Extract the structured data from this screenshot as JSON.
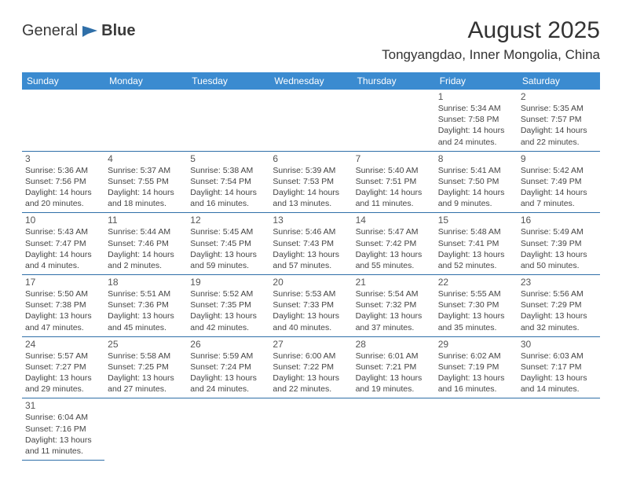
{
  "logo": {
    "text1": "General",
    "text2": "Blue"
  },
  "title": "August 2025",
  "location": "Tongyangdao, Inner Mongolia, China",
  "colors": {
    "header_bg": "#3b8bd0",
    "header_text": "#ffffff",
    "border": "#2f6fa8",
    "logo_blue": "#2f6fa8",
    "text": "#3a3a3a"
  },
  "weekdays": [
    "Sunday",
    "Monday",
    "Tuesday",
    "Wednesday",
    "Thursday",
    "Friday",
    "Saturday"
  ],
  "weeks": [
    [
      null,
      null,
      null,
      null,
      null,
      {
        "n": "1",
        "sr": "Sunrise: 5:34 AM",
        "ss": "Sunset: 7:58 PM",
        "d1": "Daylight: 14 hours",
        "d2": "and 24 minutes."
      },
      {
        "n": "2",
        "sr": "Sunrise: 5:35 AM",
        "ss": "Sunset: 7:57 PM",
        "d1": "Daylight: 14 hours",
        "d2": "and 22 minutes."
      }
    ],
    [
      {
        "n": "3",
        "sr": "Sunrise: 5:36 AM",
        "ss": "Sunset: 7:56 PM",
        "d1": "Daylight: 14 hours",
        "d2": "and 20 minutes."
      },
      {
        "n": "4",
        "sr": "Sunrise: 5:37 AM",
        "ss": "Sunset: 7:55 PM",
        "d1": "Daylight: 14 hours",
        "d2": "and 18 minutes."
      },
      {
        "n": "5",
        "sr": "Sunrise: 5:38 AM",
        "ss": "Sunset: 7:54 PM",
        "d1": "Daylight: 14 hours",
        "d2": "and 16 minutes."
      },
      {
        "n": "6",
        "sr": "Sunrise: 5:39 AM",
        "ss": "Sunset: 7:53 PM",
        "d1": "Daylight: 14 hours",
        "d2": "and 13 minutes."
      },
      {
        "n": "7",
        "sr": "Sunrise: 5:40 AM",
        "ss": "Sunset: 7:51 PM",
        "d1": "Daylight: 14 hours",
        "d2": "and 11 minutes."
      },
      {
        "n": "8",
        "sr": "Sunrise: 5:41 AM",
        "ss": "Sunset: 7:50 PM",
        "d1": "Daylight: 14 hours",
        "d2": "and 9 minutes."
      },
      {
        "n": "9",
        "sr": "Sunrise: 5:42 AM",
        "ss": "Sunset: 7:49 PM",
        "d1": "Daylight: 14 hours",
        "d2": "and 7 minutes."
      }
    ],
    [
      {
        "n": "10",
        "sr": "Sunrise: 5:43 AM",
        "ss": "Sunset: 7:47 PM",
        "d1": "Daylight: 14 hours",
        "d2": "and 4 minutes."
      },
      {
        "n": "11",
        "sr": "Sunrise: 5:44 AM",
        "ss": "Sunset: 7:46 PM",
        "d1": "Daylight: 14 hours",
        "d2": "and 2 minutes."
      },
      {
        "n": "12",
        "sr": "Sunrise: 5:45 AM",
        "ss": "Sunset: 7:45 PM",
        "d1": "Daylight: 13 hours",
        "d2": "and 59 minutes."
      },
      {
        "n": "13",
        "sr": "Sunrise: 5:46 AM",
        "ss": "Sunset: 7:43 PM",
        "d1": "Daylight: 13 hours",
        "d2": "and 57 minutes."
      },
      {
        "n": "14",
        "sr": "Sunrise: 5:47 AM",
        "ss": "Sunset: 7:42 PM",
        "d1": "Daylight: 13 hours",
        "d2": "and 55 minutes."
      },
      {
        "n": "15",
        "sr": "Sunrise: 5:48 AM",
        "ss": "Sunset: 7:41 PM",
        "d1": "Daylight: 13 hours",
        "d2": "and 52 minutes."
      },
      {
        "n": "16",
        "sr": "Sunrise: 5:49 AM",
        "ss": "Sunset: 7:39 PM",
        "d1": "Daylight: 13 hours",
        "d2": "and 50 minutes."
      }
    ],
    [
      {
        "n": "17",
        "sr": "Sunrise: 5:50 AM",
        "ss": "Sunset: 7:38 PM",
        "d1": "Daylight: 13 hours",
        "d2": "and 47 minutes."
      },
      {
        "n": "18",
        "sr": "Sunrise: 5:51 AM",
        "ss": "Sunset: 7:36 PM",
        "d1": "Daylight: 13 hours",
        "d2": "and 45 minutes."
      },
      {
        "n": "19",
        "sr": "Sunrise: 5:52 AM",
        "ss": "Sunset: 7:35 PM",
        "d1": "Daylight: 13 hours",
        "d2": "and 42 minutes."
      },
      {
        "n": "20",
        "sr": "Sunrise: 5:53 AM",
        "ss": "Sunset: 7:33 PM",
        "d1": "Daylight: 13 hours",
        "d2": "and 40 minutes."
      },
      {
        "n": "21",
        "sr": "Sunrise: 5:54 AM",
        "ss": "Sunset: 7:32 PM",
        "d1": "Daylight: 13 hours",
        "d2": "and 37 minutes."
      },
      {
        "n": "22",
        "sr": "Sunrise: 5:55 AM",
        "ss": "Sunset: 7:30 PM",
        "d1": "Daylight: 13 hours",
        "d2": "and 35 minutes."
      },
      {
        "n": "23",
        "sr": "Sunrise: 5:56 AM",
        "ss": "Sunset: 7:29 PM",
        "d1": "Daylight: 13 hours",
        "d2": "and 32 minutes."
      }
    ],
    [
      {
        "n": "24",
        "sr": "Sunrise: 5:57 AM",
        "ss": "Sunset: 7:27 PM",
        "d1": "Daylight: 13 hours",
        "d2": "and 29 minutes."
      },
      {
        "n": "25",
        "sr": "Sunrise: 5:58 AM",
        "ss": "Sunset: 7:25 PM",
        "d1": "Daylight: 13 hours",
        "d2": "and 27 minutes."
      },
      {
        "n": "26",
        "sr": "Sunrise: 5:59 AM",
        "ss": "Sunset: 7:24 PM",
        "d1": "Daylight: 13 hours",
        "d2": "and 24 minutes."
      },
      {
        "n": "27",
        "sr": "Sunrise: 6:00 AM",
        "ss": "Sunset: 7:22 PM",
        "d1": "Daylight: 13 hours",
        "d2": "and 22 minutes."
      },
      {
        "n": "28",
        "sr": "Sunrise: 6:01 AM",
        "ss": "Sunset: 7:21 PM",
        "d1": "Daylight: 13 hours",
        "d2": "and 19 minutes."
      },
      {
        "n": "29",
        "sr": "Sunrise: 6:02 AM",
        "ss": "Sunset: 7:19 PM",
        "d1": "Daylight: 13 hours",
        "d2": "and 16 minutes."
      },
      {
        "n": "30",
        "sr": "Sunrise: 6:03 AM",
        "ss": "Sunset: 7:17 PM",
        "d1": "Daylight: 13 hours",
        "d2": "and 14 minutes."
      }
    ],
    [
      {
        "n": "31",
        "sr": "Sunrise: 6:04 AM",
        "ss": "Sunset: 7:16 PM",
        "d1": "Daylight: 13 hours",
        "d2": "and 11 minutes."
      },
      null,
      null,
      null,
      null,
      null,
      null
    ]
  ]
}
